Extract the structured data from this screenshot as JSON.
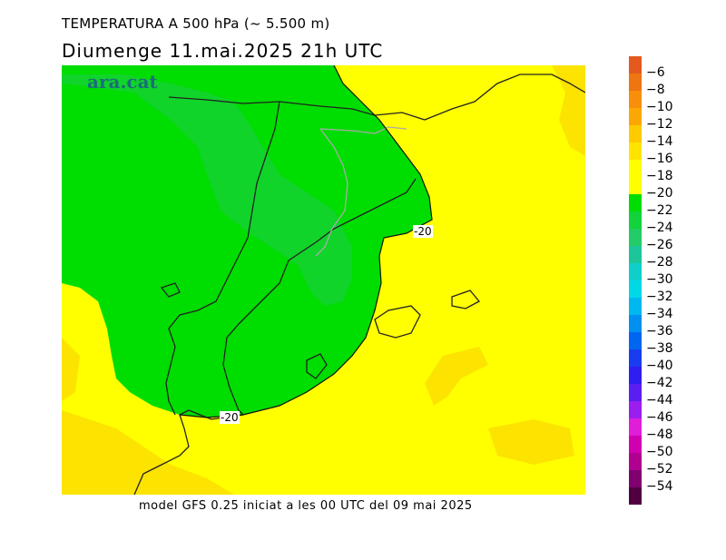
{
  "header": {
    "title": "TEMPERATURA A 500 hPa (~ 5.500 m)",
    "subtitle": "Diumenge  11.mai.2025 21h UTC"
  },
  "logo": {
    "text": "ara.cat"
  },
  "footer": {
    "text": "model GFS 0.25 iniciat a les 00 UTC del 09 mai 2025"
  },
  "contour_labels": [
    "-20",
    "-20"
  ],
  "legend": {
    "labels": [
      "-6",
      "-8",
      "-10",
      "-12",
      "-14",
      "-16",
      "-18",
      "-20",
      "-22",
      "-24",
      "-26",
      "-28",
      "-30",
      "-32",
      "-34",
      "-36",
      "-38",
      "-40",
      "-42",
      "-44",
      "-46",
      "-48",
      "-50",
      "-52",
      "-54"
    ],
    "colors": [
      "#e45a1e",
      "#ee7512",
      "#f78f0a",
      "#fca804",
      "#feca00",
      "#ffe400",
      "#ffff00",
      "#ffff00",
      "#00dd00",
      "#12d33c",
      "#23cc66",
      "#1bc79a",
      "#0fcfca",
      "#00d8e6",
      "#00b8f0",
      "#0090f0",
      "#0066f0",
      "#1a3cf0",
      "#2e1ef0",
      "#5a1ef0",
      "#9a1ef0",
      "#e01ed8",
      "#d000b0",
      "#b00090",
      "#800070",
      "#500040"
    ]
  },
  "map": {
    "colors": {
      "yellow": "#ffff00",
      "dark_yellow": "#fce300",
      "green": "#00dd00",
      "light_green": "#19d040"
    }
  }
}
